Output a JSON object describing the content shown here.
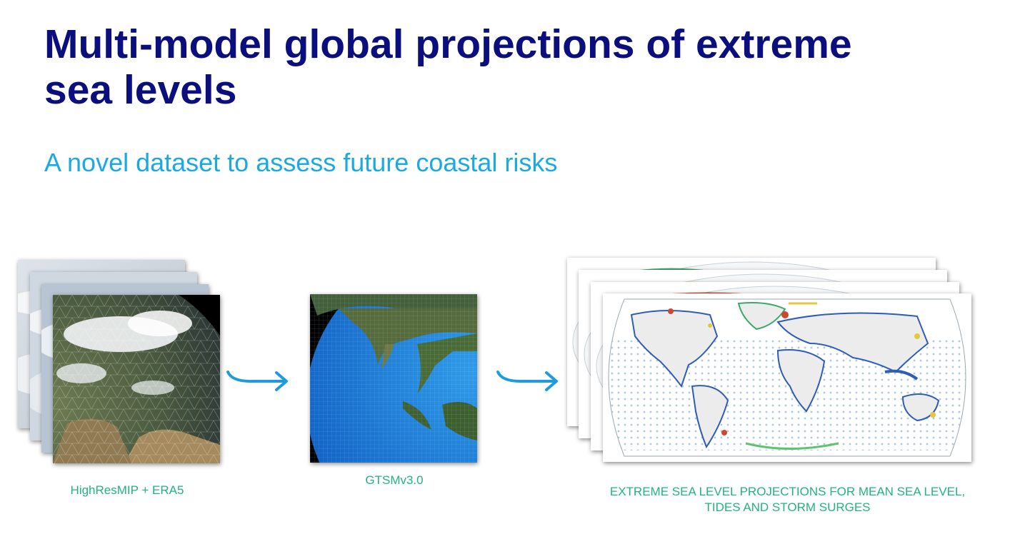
{
  "slide": {
    "title": "Multi-model global projections of extreme sea levels",
    "subtitle": "A novel dataset to assess future coastal risks"
  },
  "steps": [
    {
      "caption": "HighResMIP + ERA5",
      "icon": "earth-europe-mesh-image"
    },
    {
      "caption": "GTSMv3.0",
      "icon": "earth-southeast-asia-grid-image"
    },
    {
      "caption": "EXTREME SEA LEVEL PROJECTIONS FOR MEAN SEA LEVEL, TIDES AND STORM SURGES",
      "icon": "world-map-projection-image"
    }
  ],
  "colors": {
    "title": "#0b0f7e",
    "subtitle": "#1ba9e1",
    "caption": "#22b37e",
    "arrow": "#1e9be0"
  }
}
